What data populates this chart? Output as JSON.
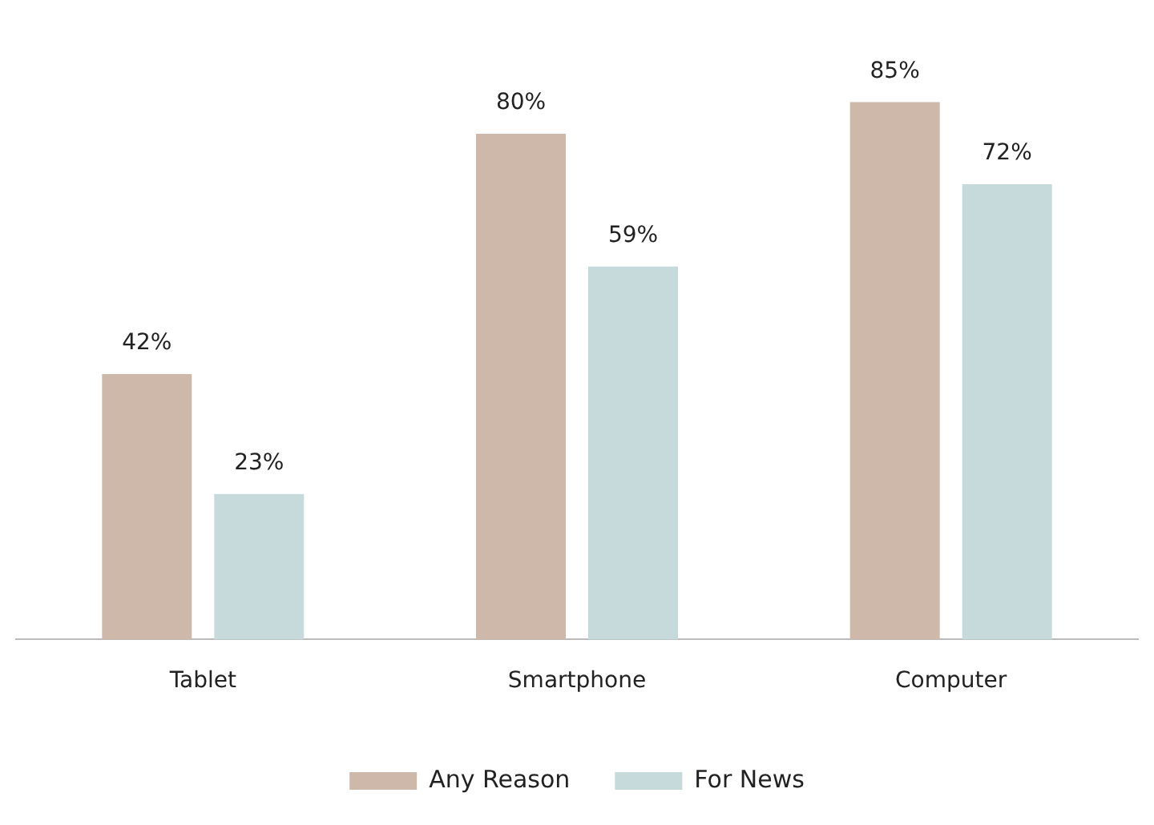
{
  "chart_data": {
    "type": "bar",
    "categories": [
      "Tablet",
      "Smartphone",
      "Computer"
    ],
    "series": [
      {
        "name": "Any Reason",
        "color": "#cdb8aa",
        "values": [
          42,
          80,
          85
        ],
        "value_labels": [
          "42%",
          "80%",
          "85%"
        ]
      },
      {
        "name": "For News",
        "color": "#c6dadb",
        "values": [
          23,
          59,
          72
        ],
        "value_labels": [
          "23%",
          "59%",
          "72%"
        ]
      }
    ],
    "tick_labels": "x",
    "grid": false,
    "legend": "bottom"
  }
}
